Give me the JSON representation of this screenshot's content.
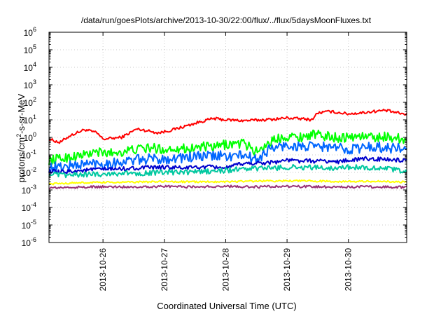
{
  "chart_data": {
    "type": "line",
    "title": "/data/run/goesPlots/archive/2013-10-30/22:00/flux/../flux/5daysMoonFluxes.txt",
    "xlabel": "Coordinated Universal Time (UTC)",
    "ylabel": "protons/cm²-s-sr-MeV",
    "ylabel_parts": {
      "before": "protons/cm",
      "sup": "2",
      "after": "-s-sr-MeV"
    },
    "y_scale": "log",
    "ylim_exponents": [
      -6,
      6
    ],
    "y_tick_exponents": [
      -6,
      -5,
      -4,
      -3,
      -2,
      -1,
      0,
      1,
      2,
      3,
      4,
      5,
      6
    ],
    "y_tick_base": "10",
    "xlim_days": [
      25.12,
      30.95
    ],
    "x_ticks": [
      {
        "label": "2013-10-26",
        "day": 26
      },
      {
        "label": "2013-10-27",
        "day": 27
      },
      {
        "label": "2013-10-28",
        "day": 28
      },
      {
        "label": "2013-10-29",
        "day": 29
      },
      {
        "label": "2013-10-30",
        "day": 30
      }
    ],
    "grid": true,
    "legend": "none",
    "series": [
      {
        "color": "#ff0000",
        "noise": 0.08,
        "x": [
          25.12,
          25.3,
          25.45,
          25.7,
          25.9,
          26.0,
          26.3,
          26.55,
          26.7,
          26.9,
          27.1,
          27.4,
          27.6,
          27.8,
          28.0,
          28.3,
          28.6,
          28.8,
          29.0,
          29.3,
          29.4,
          29.5,
          29.7,
          30.0,
          30.2,
          30.4,
          30.6,
          30.8,
          30.95
        ],
        "y": [
          0.8,
          0.5,
          1.2,
          2.8,
          1.8,
          0.8,
          1.0,
          3.0,
          2.5,
          1.8,
          2.5,
          5.0,
          8.0,
          12,
          10,
          9,
          10,
          11,
          13,
          11,
          10,
          25,
          30,
          22,
          25,
          30,
          35,
          25,
          20
        ]
      },
      {
        "color": "#00ff00",
        "noise": 0.28,
        "x": [
          25.12,
          25.3,
          25.5,
          25.7,
          25.9,
          26.0,
          26.3,
          26.5,
          26.8,
          27.0,
          27.2,
          27.4,
          27.6,
          27.8,
          28.0,
          28.3,
          28.5,
          28.7,
          28.9,
          29.0,
          29.2,
          29.4,
          29.6,
          29.8,
          30.0,
          30.2,
          30.4,
          30.6,
          30.8,
          30.95
        ],
        "y": [
          0.05,
          0.06,
          0.08,
          0.1,
          0.15,
          0.12,
          0.15,
          0.2,
          0.25,
          0.2,
          0.25,
          0.22,
          0.3,
          0.25,
          0.4,
          0.45,
          0.15,
          0.5,
          1.0,
          1.2,
          1.0,
          1.5,
          1.2,
          1.0,
          1.0,
          1.2,
          1.0,
          1.1,
          0.9,
          0.8
        ]
      },
      {
        "color": "#0066ff",
        "noise": 0.3,
        "x": [
          25.12,
          25.3,
          25.5,
          25.7,
          25.9,
          26.0,
          26.3,
          26.5,
          26.8,
          27.0,
          27.3,
          27.6,
          27.9,
          28.1,
          28.3,
          28.5,
          28.7,
          28.9,
          29.0,
          29.2,
          29.4,
          29.6,
          29.8,
          30.0,
          30.2,
          30.4,
          30.6,
          30.8,
          30.95
        ],
        "y": [
          0.02,
          0.02,
          0.025,
          0.03,
          0.035,
          0.03,
          0.04,
          0.05,
          0.06,
          0.06,
          0.07,
          0.08,
          0.09,
          0.08,
          0.1,
          0.05,
          0.2,
          0.3,
          0.35,
          0.3,
          0.28,
          0.3,
          0.25,
          0.22,
          0.25,
          0.3,
          0.25,
          0.25,
          0.2
        ]
      },
      {
        "color": "#0000cc",
        "noise": 0.12,
        "x": [
          25.12,
          25.3,
          25.5,
          25.7,
          25.9,
          26.0,
          26.3,
          26.6,
          27.0,
          27.3,
          27.6,
          27.9,
          28.0,
          28.1,
          28.2,
          28.4,
          28.6,
          28.8,
          29.0,
          29.2,
          29.4,
          29.6,
          29.8,
          30.0,
          30.3,
          30.6,
          30.8,
          30.95
        ],
        "y": [
          0.012,
          0.01,
          0.012,
          0.013,
          0.015,
          0.015,
          0.016,
          0.018,
          0.02,
          0.018,
          0.02,
          0.02,
          0.018,
          0.02,
          0.03,
          0.033,
          0.035,
          0.04,
          0.05,
          0.045,
          0.045,
          0.045,
          0.04,
          0.05,
          0.06,
          0.055,
          0.05,
          0.045
        ]
      },
      {
        "color": "#00c8a0",
        "noise": 0.15,
        "x": [
          25.12,
          25.3,
          25.5,
          25.8,
          26.0,
          26.3,
          26.6,
          27.0,
          27.3,
          27.6,
          27.9,
          28.2,
          28.5,
          28.8,
          29.1,
          29.4,
          29.7,
          30.0,
          30.3,
          30.6,
          30.8,
          30.95
        ],
        "y": [
          0.008,
          0.007,
          0.007,
          0.008,
          0.008,
          0.009,
          0.009,
          0.01,
          0.01,
          0.011,
          0.012,
          0.015,
          0.017,
          0.018,
          0.02,
          0.019,
          0.018,
          0.02,
          0.019,
          0.017,
          0.013,
          0.012
        ]
      },
      {
        "color": "#ffff00",
        "noise": 0.05,
        "x": [
          25.12,
          25.5,
          26.0,
          26.5,
          27.0,
          27.5,
          28.0,
          28.5,
          29.0,
          29.5,
          30.0,
          30.5,
          30.95
        ],
        "y": [
          0.0022,
          0.0025,
          0.0027,
          0.0028,
          0.003,
          0.0029,
          0.003,
          0.0032,
          0.0033,
          0.0032,
          0.003,
          0.0031,
          0.0028
        ]
      },
      {
        "color": "#993377",
        "noise": 0.07,
        "x": [
          25.12,
          25.5,
          26.0,
          26.5,
          27.0,
          27.5,
          28.0,
          28.5,
          29.0,
          29.5,
          30.0,
          30.5,
          30.95
        ],
        "y": [
          0.0013,
          0.0014,
          0.0015,
          0.0015,
          0.0016,
          0.0015,
          0.0016,
          0.0015,
          0.0016,
          0.0015,
          0.0015,
          0.0015,
          0.0014
        ]
      }
    ]
  }
}
